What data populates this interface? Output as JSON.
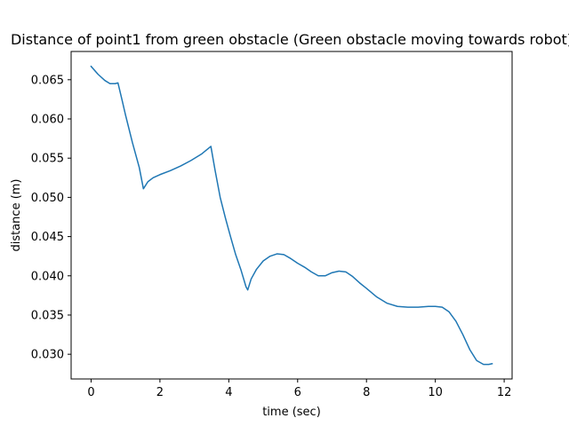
{
  "chart_data": {
    "type": "line",
    "title": "Distance of point1 from green obstacle (Green obstacle moving towards robot)",
    "xlabel": "time (sec)",
    "ylabel": "distance (m)",
    "xlim": [
      -0.58,
      12.23
    ],
    "ylim": [
      0.02685,
      0.0686
    ],
    "xticks": [
      0,
      2,
      4,
      6,
      8,
      10,
      12
    ],
    "xtick_labels": [
      "0",
      "2",
      "4",
      "6",
      "8",
      "10",
      "12"
    ],
    "yticks": [
      0.03,
      0.035,
      0.04,
      0.045,
      0.05,
      0.055,
      0.06,
      0.065
    ],
    "ytick_labels": [
      "0.030",
      "0.035",
      "0.040",
      "0.045",
      "0.050",
      "0.055",
      "0.060",
      "0.065"
    ],
    "grid": false,
    "series": [
      {
        "color": "#1f77b4",
        "x": [
          0.0,
          0.2,
          0.4,
          0.55,
          0.7,
          0.78,
          0.9,
          1.0,
          1.2,
          1.4,
          1.52,
          1.65,
          1.8,
          2.0,
          2.3,
          2.6,
          2.9,
          3.2,
          3.48,
          3.6,
          3.75,
          3.9,
          4.05,
          4.2,
          4.35,
          4.5,
          4.55,
          4.65,
          4.8,
          5.0,
          5.2,
          5.4,
          5.6,
          5.8,
          6.0,
          6.2,
          6.4,
          6.6,
          6.8,
          7.0,
          7.2,
          7.4,
          7.6,
          7.8,
          8.0,
          8.3,
          8.6,
          8.9,
          9.2,
          9.5,
          9.8,
          10.0,
          10.2,
          10.4,
          10.6,
          10.8,
          11.0,
          11.2,
          11.4,
          11.55,
          11.65
        ],
        "y": [
          0.0667,
          0.0657,
          0.0649,
          0.0645,
          0.0645,
          0.0646,
          0.0624,
          0.0605,
          0.057,
          0.0538,
          0.0511,
          0.052,
          0.0525,
          0.0529,
          0.0534,
          0.054,
          0.0547,
          0.0555,
          0.0565,
          0.0535,
          0.05,
          0.0474,
          0.045,
          0.0427,
          0.0408,
          0.0386,
          0.0382,
          0.0396,
          0.0408,
          0.0419,
          0.0425,
          0.0428,
          0.0427,
          0.0422,
          0.0416,
          0.0411,
          0.0405,
          0.04,
          0.04,
          0.0404,
          0.0406,
          0.0405,
          0.0399,
          0.0391,
          0.0384,
          0.0373,
          0.0365,
          0.0361,
          0.036,
          0.036,
          0.0361,
          0.0361,
          0.036,
          0.0354,
          0.0342,
          0.0325,
          0.0306,
          0.0292,
          0.0287,
          0.0287,
          0.0288
        ]
      }
    ]
  }
}
